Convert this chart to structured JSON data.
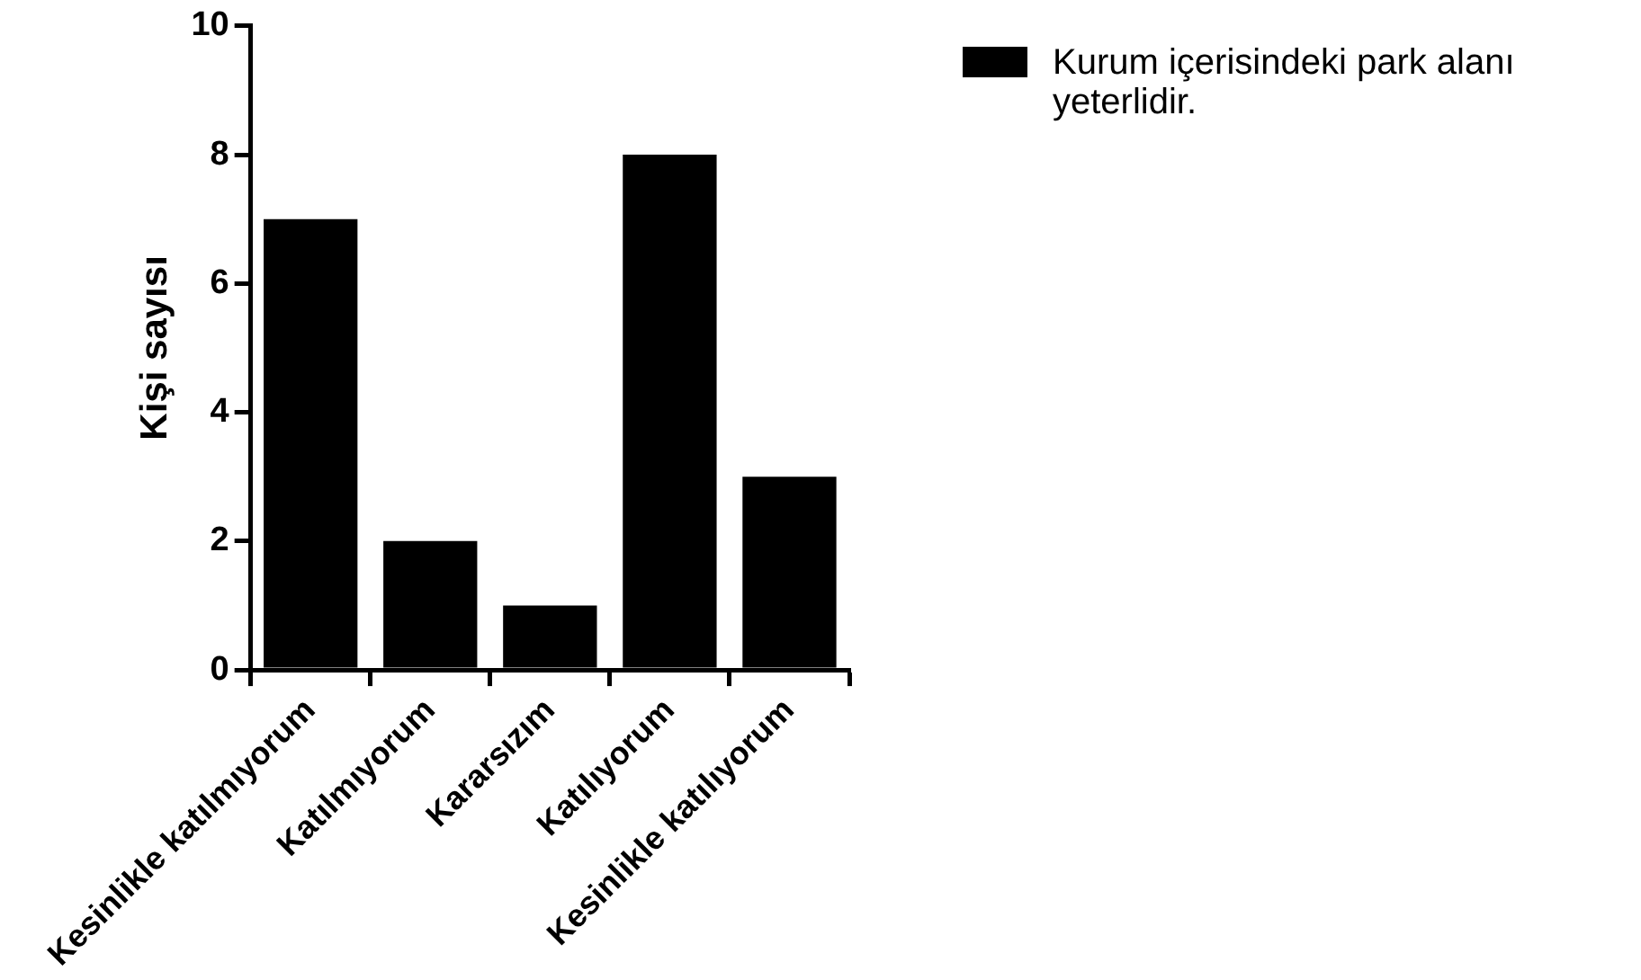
{
  "chart_data": {
    "type": "bar",
    "ylabel": "Kişi sayısı",
    "categories": [
      "Kesinlikle katılmıyorum",
      "Katılmıyorum",
      "Kararsızım",
      "Katılıyorum",
      "Kesinlikle katılıyorum"
    ],
    "series": [
      {
        "name": "Kurum içerisindeki park alanı yeterlidir.",
        "color": "#000000",
        "values": [
          7,
          2,
          1,
          8,
          3
        ]
      }
    ],
    "ylim": [
      0,
      10
    ],
    "yticks": [
      0,
      2,
      4,
      6,
      8,
      10
    ],
    "grid": false,
    "legend": "top right"
  }
}
